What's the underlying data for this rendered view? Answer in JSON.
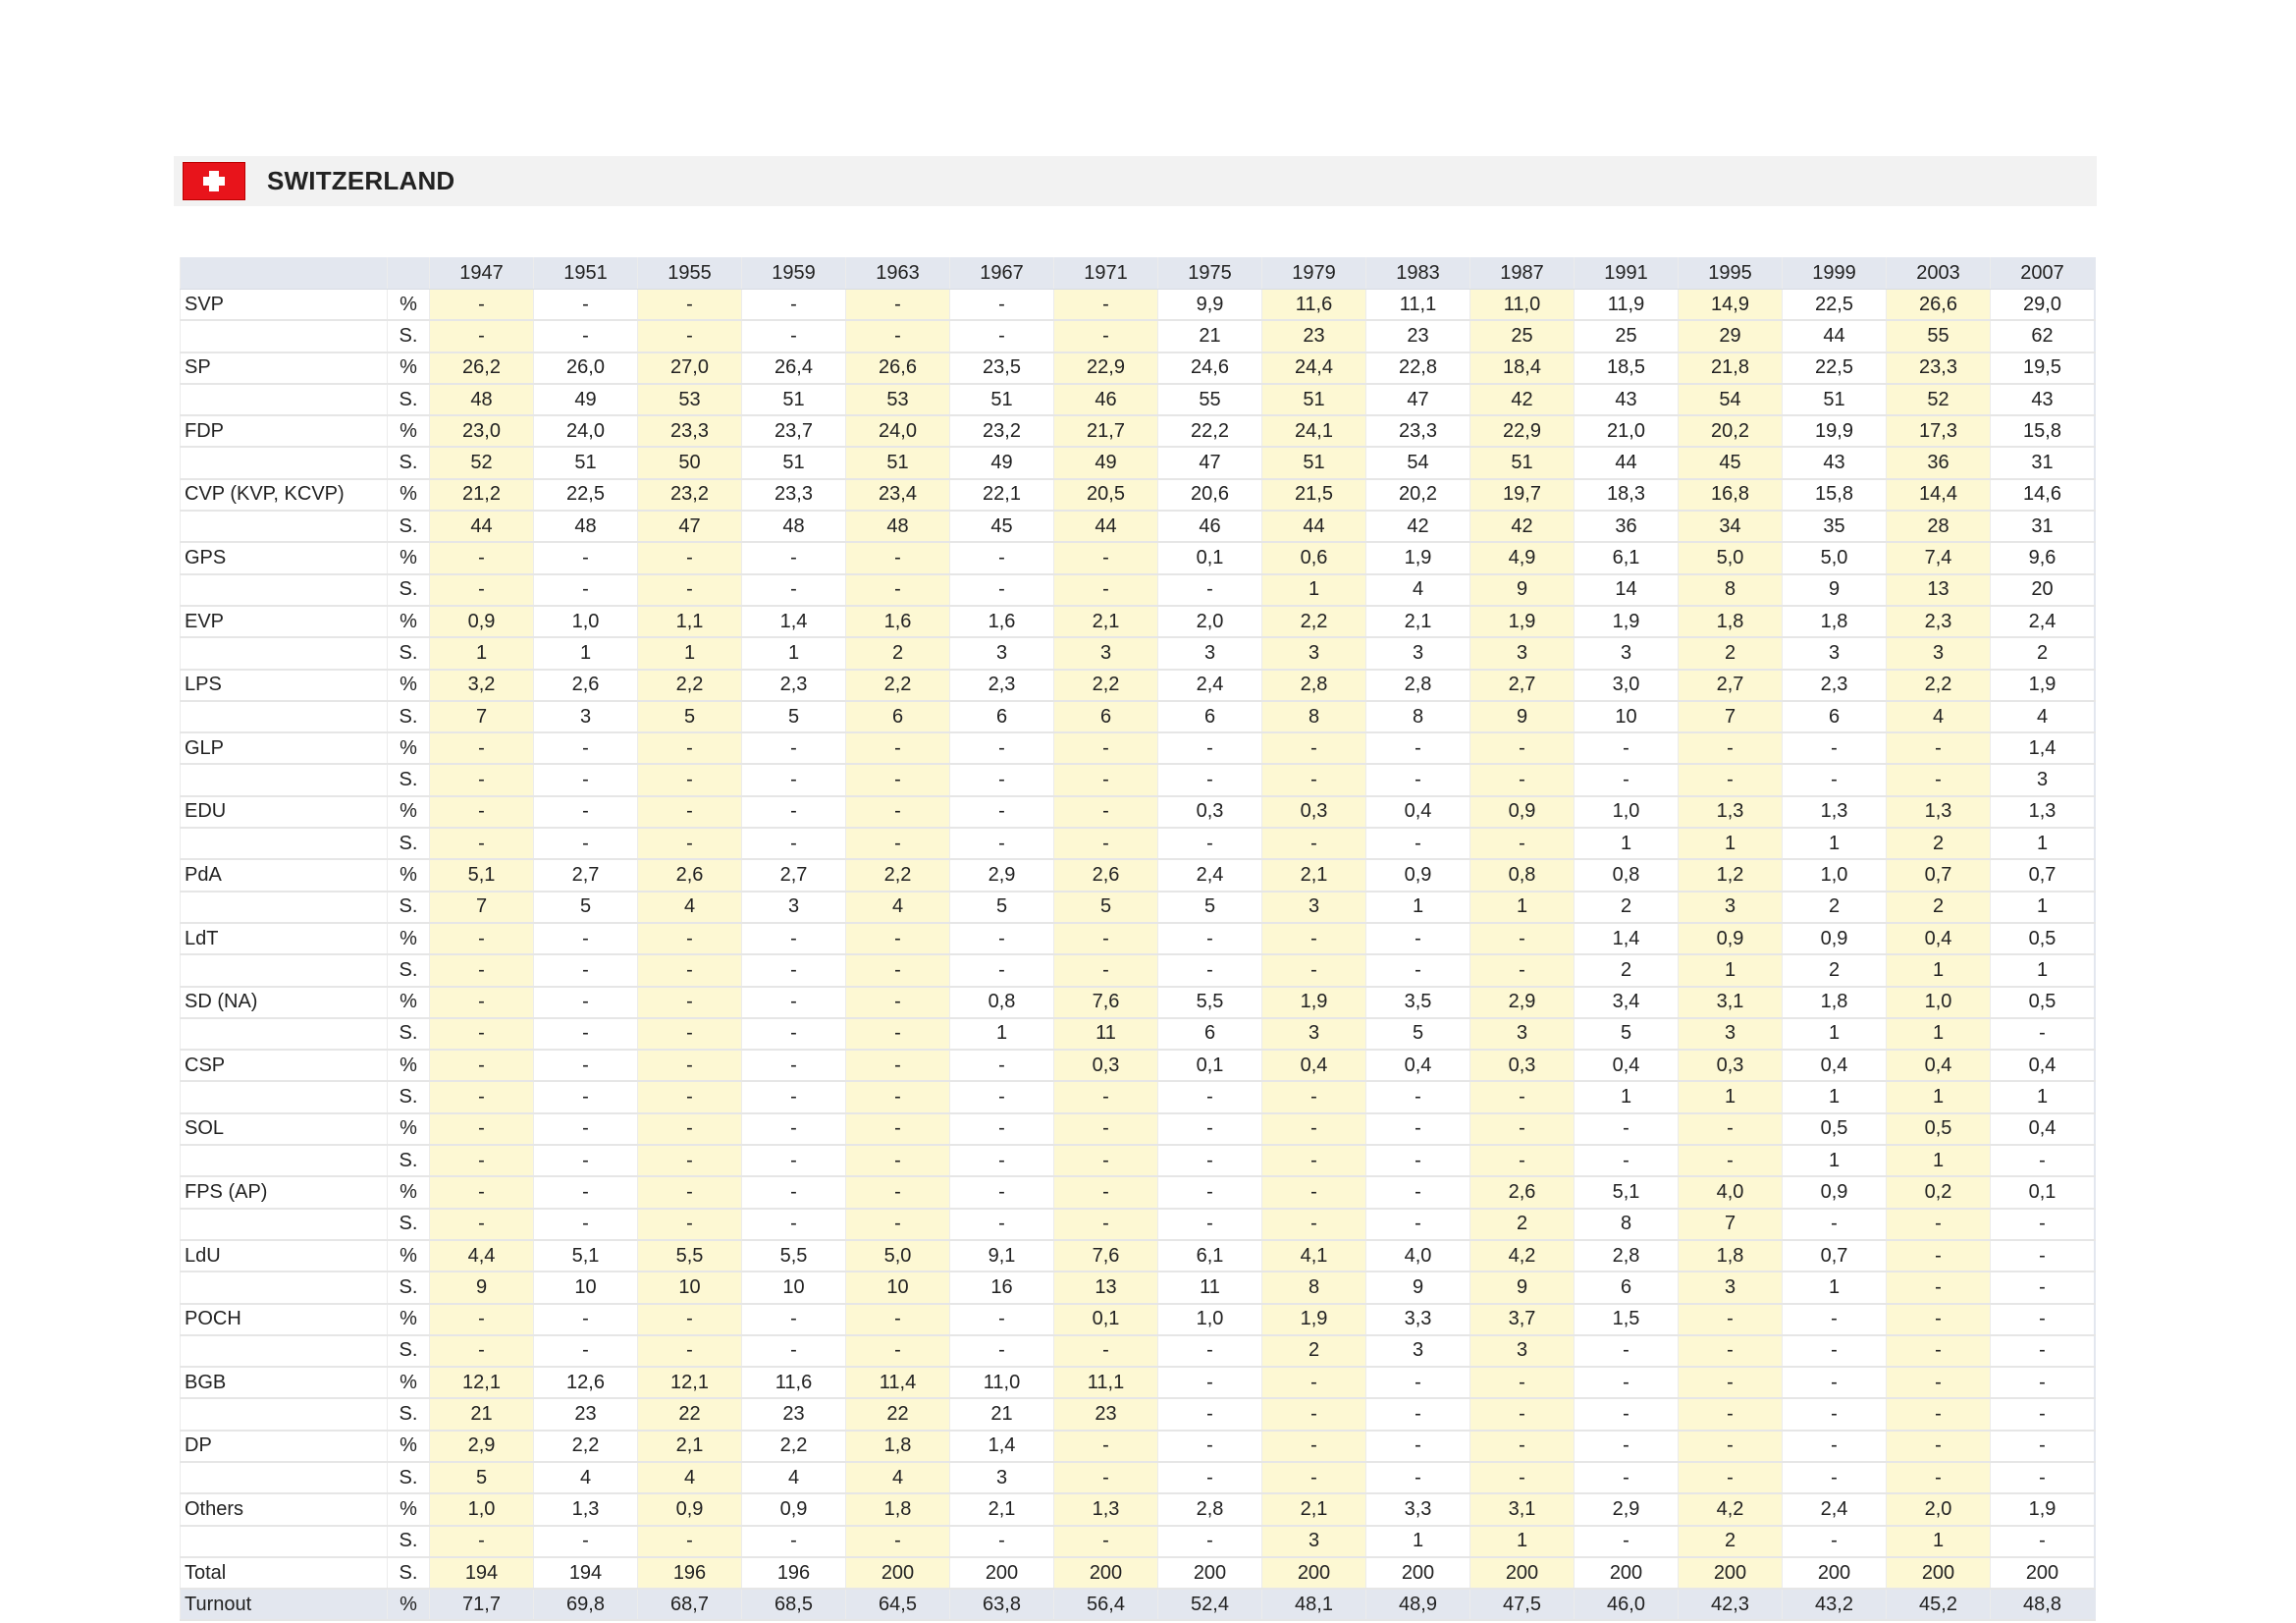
{
  "header": {
    "country": "SWITZERLAND",
    "flag_icon": "swiss-flag-icon"
  },
  "colors": {
    "header_bg": "#e3e7ef",
    "alt_column": "#fdf8d3",
    "flag_red": "#e8141b"
  },
  "table": {
    "years": [
      "1947",
      "1951",
      "1955",
      "1959",
      "1963",
      "1967",
      "1971",
      "1975",
      "1979",
      "1983",
      "1987",
      "1991",
      "1995",
      "1999",
      "2003",
      "2007"
    ],
    "pct_label": "%",
    "seats_label": "S.",
    "parties": [
      {
        "name": "SVP",
        "pct": [
          "-",
          "-",
          "-",
          "-",
          "-",
          "-",
          "-",
          "9,9",
          "11,6",
          "11,1",
          "11,0",
          "11,9",
          "14,9",
          "22,5",
          "26,6",
          "29,0"
        ],
        "seats": [
          "-",
          "-",
          "-",
          "-",
          "-",
          "-",
          "-",
          "21",
          "23",
          "23",
          "25",
          "25",
          "29",
          "44",
          "55",
          "62"
        ]
      },
      {
        "name": "SP",
        "pct": [
          "26,2",
          "26,0",
          "27,0",
          "26,4",
          "26,6",
          "23,5",
          "22,9",
          "24,6",
          "24,4",
          "22,8",
          "18,4",
          "18,5",
          "21,8",
          "22,5",
          "23,3",
          "19,5"
        ],
        "seats": [
          "48",
          "49",
          "53",
          "51",
          "53",
          "51",
          "46",
          "55",
          "51",
          "47",
          "42",
          "43",
          "54",
          "51",
          "52",
          "43"
        ]
      },
      {
        "name": "FDP",
        "pct": [
          "23,0",
          "24,0",
          "23,3",
          "23,7",
          "24,0",
          "23,2",
          "21,7",
          "22,2",
          "24,1",
          "23,3",
          "22,9",
          "21,0",
          "20,2",
          "19,9",
          "17,3",
          "15,8"
        ],
        "seats": [
          "52",
          "51",
          "50",
          "51",
          "51",
          "49",
          "49",
          "47",
          "51",
          "54",
          "51",
          "44",
          "45",
          "43",
          "36",
          "31"
        ]
      },
      {
        "name": "CVP (KVP, KCVP)",
        "pct": [
          "21,2",
          "22,5",
          "23,2",
          "23,3",
          "23,4",
          "22,1",
          "20,5",
          "20,6",
          "21,5",
          "20,2",
          "19,7",
          "18,3",
          "16,8",
          "15,8",
          "14,4",
          "14,6"
        ],
        "seats": [
          "44",
          "48",
          "47",
          "48",
          "48",
          "45",
          "44",
          "46",
          "44",
          "42",
          "42",
          "36",
          "34",
          "35",
          "28",
          "31"
        ]
      },
      {
        "name": "GPS",
        "pct": [
          "-",
          "-",
          "-",
          "-",
          "-",
          "-",
          "-",
          "0,1",
          "0,6",
          "1,9",
          "4,9",
          "6,1",
          "5,0",
          "5,0",
          "7,4",
          "9,6"
        ],
        "seats": [
          "-",
          "-",
          "-",
          "-",
          "-",
          "-",
          "-",
          "-",
          "1",
          "4",
          "9",
          "14",
          "8",
          "9",
          "13",
          "20"
        ]
      },
      {
        "name": "EVP",
        "pct": [
          "0,9",
          "1,0",
          "1,1",
          "1,4",
          "1,6",
          "1,6",
          "2,1",
          "2,0",
          "2,2",
          "2,1",
          "1,9",
          "1,9",
          "1,8",
          "1,8",
          "2,3",
          "2,4"
        ],
        "seats": [
          "1",
          "1",
          "1",
          "1",
          "2",
          "3",
          "3",
          "3",
          "3",
          "3",
          "3",
          "3",
          "2",
          "3",
          "3",
          "2"
        ]
      },
      {
        "name": "LPS",
        "pct": [
          "3,2",
          "2,6",
          "2,2",
          "2,3",
          "2,2",
          "2,3",
          "2,2",
          "2,4",
          "2,8",
          "2,8",
          "2,7",
          "3,0",
          "2,7",
          "2,3",
          "2,2",
          "1,9"
        ],
        "seats": [
          "7",
          "3",
          "5",
          "5",
          "6",
          "6",
          "6",
          "6",
          "8",
          "8",
          "9",
          "10",
          "7",
          "6",
          "4",
          "4"
        ]
      },
      {
        "name": "GLP",
        "pct": [
          "-",
          "-",
          "-",
          "-",
          "-",
          "-",
          "-",
          "-",
          "-",
          "-",
          "-",
          "-",
          "-",
          "-",
          "-",
          "1,4"
        ],
        "seats": [
          "-",
          "-",
          "-",
          "-",
          "-",
          "-",
          "-",
          "-",
          "-",
          "-",
          "-",
          "-",
          "-",
          "-",
          "-",
          "3"
        ]
      },
      {
        "name": "EDU",
        "pct": [
          "-",
          "-",
          "-",
          "-",
          "-",
          "-",
          "-",
          "0,3",
          "0,3",
          "0,4",
          "0,9",
          "1,0",
          "1,3",
          "1,3",
          "1,3",
          "1,3"
        ],
        "seats": [
          "-",
          "-",
          "-",
          "-",
          "-",
          "-",
          "-",
          "-",
          "-",
          "-",
          "-",
          "1",
          "1",
          "1",
          "2",
          "1"
        ]
      },
      {
        "name": "PdA",
        "pct": [
          "5,1",
          "2,7",
          "2,6",
          "2,7",
          "2,2",
          "2,9",
          "2,6",
          "2,4",
          "2,1",
          "0,9",
          "0,8",
          "0,8",
          "1,2",
          "1,0",
          "0,7",
          "0,7"
        ],
        "seats": [
          "7",
          "5",
          "4",
          "3",
          "4",
          "5",
          "5",
          "5",
          "3",
          "1",
          "1",
          "2",
          "3",
          "2",
          "2",
          "1"
        ]
      },
      {
        "name": "LdT",
        "pct": [
          "-",
          "-",
          "-",
          "-",
          "-",
          "-",
          "-",
          "-",
          "-",
          "-",
          "-",
          "1,4",
          "0,9",
          "0,9",
          "0,4",
          "0,5"
        ],
        "seats": [
          "-",
          "-",
          "-",
          "-",
          "-",
          "-",
          "-",
          "-",
          "-",
          "-",
          "-",
          "2",
          "1",
          "2",
          "1",
          "1"
        ]
      },
      {
        "name": "SD (NA)",
        "pct": [
          "-",
          "-",
          "-",
          "-",
          "-",
          "0,8",
          "7,6",
          "5,5",
          "1,9",
          "3,5",
          "2,9",
          "3,4",
          "3,1",
          "1,8",
          "1,0",
          "0,5"
        ],
        "seats": [
          "-",
          "-",
          "-",
          "-",
          "-",
          "1",
          "11",
          "6",
          "3",
          "5",
          "3",
          "5",
          "3",
          "1",
          "1",
          "-"
        ]
      },
      {
        "name": "CSP",
        "pct": [
          "-",
          "-",
          "-",
          "-",
          "-",
          "-",
          "0,3",
          "0,1",
          "0,4",
          "0,4",
          "0,3",
          "0,4",
          "0,3",
          "0,4",
          "0,4",
          "0,4"
        ],
        "seats": [
          "-",
          "-",
          "-",
          "-",
          "-",
          "-",
          "-",
          "-",
          "-",
          "-",
          "-",
          "1",
          "1",
          "1",
          "1",
          "1"
        ]
      },
      {
        "name": "SOL",
        "pct": [
          "-",
          "-",
          "-",
          "-",
          "-",
          "-",
          "-",
          "-",
          "-",
          "-",
          "-",
          "-",
          "-",
          "0,5",
          "0,5",
          "0,4"
        ],
        "seats": [
          "-",
          "-",
          "-",
          "-",
          "-",
          "-",
          "-",
          "-",
          "-",
          "-",
          "-",
          "-",
          "-",
          "1",
          "1",
          "-"
        ]
      },
      {
        "name": "FPS (AP)",
        "pct": [
          "-",
          "-",
          "-",
          "-",
          "-",
          "-",
          "-",
          "-",
          "-",
          "-",
          "2,6",
          "5,1",
          "4,0",
          "0,9",
          "0,2",
          "0,1"
        ],
        "seats": [
          "-",
          "-",
          "-",
          "-",
          "-",
          "-",
          "-",
          "-",
          "-",
          "-",
          "2",
          "8",
          "7",
          "-",
          "-",
          "-"
        ]
      },
      {
        "name": "LdU",
        "pct": [
          "4,4",
          "5,1",
          "5,5",
          "5,5",
          "5,0",
          "9,1",
          "7,6",
          "6,1",
          "4,1",
          "4,0",
          "4,2",
          "2,8",
          "1,8",
          "0,7",
          "-",
          "-"
        ],
        "seats": [
          "9",
          "10",
          "10",
          "10",
          "10",
          "16",
          "13",
          "11",
          "8",
          "9",
          "9",
          "6",
          "3",
          "1",
          "-",
          "-"
        ]
      },
      {
        "name": "POCH",
        "pct": [
          "-",
          "-",
          "-",
          "-",
          "-",
          "-",
          "0,1",
          "1,0",
          "1,9",
          "3,3",
          "3,7",
          "1,5",
          "-",
          "-",
          "-",
          "-"
        ],
        "seats": [
          "-",
          "-",
          "-",
          "-",
          "-",
          "-",
          "-",
          "-",
          "2",
          "3",
          "3",
          "-",
          "-",
          "-",
          "-",
          "-"
        ]
      },
      {
        "name": "BGB",
        "pct": [
          "12,1",
          "12,6",
          "12,1",
          "11,6",
          "11,4",
          "11,0",
          "11,1",
          "-",
          "-",
          "-",
          "-",
          "-",
          "-",
          "-",
          "-",
          "-"
        ],
        "seats": [
          "21",
          "23",
          "22",
          "23",
          "22",
          "21",
          "23",
          "-",
          "-",
          "-",
          "-",
          "-",
          "-",
          "-",
          "-",
          "-"
        ]
      },
      {
        "name": "DP",
        "pct": [
          "2,9",
          "2,2",
          "2,1",
          "2,2",
          "1,8",
          "1,4",
          "-",
          "-",
          "-",
          "-",
          "-",
          "-",
          "-",
          "-",
          "-",
          "-"
        ],
        "seats": [
          "5",
          "4",
          "4",
          "4",
          "4",
          "3",
          "-",
          "-",
          "-",
          "-",
          "-",
          "-",
          "-",
          "-",
          "-",
          "-"
        ]
      },
      {
        "name": "Others",
        "pct": [
          "1,0",
          "1,3",
          "0,9",
          "0,9",
          "1,8",
          "2,1",
          "1,3",
          "2,8",
          "2,1",
          "3,3",
          "3,1",
          "2,9",
          "4,2",
          "2,4",
          "2,0",
          "1,9"
        ],
        "seats": [
          "-",
          "-",
          "-",
          "-",
          "-",
          "-",
          "-",
          "-",
          "3",
          "1",
          "1",
          "-",
          "2",
          "-",
          "1",
          "-"
        ]
      }
    ],
    "total": {
      "name": "Total",
      "unit": "S.",
      "values": [
        "194",
        "194",
        "196",
        "196",
        "200",
        "200",
        "200",
        "200",
        "200",
        "200",
        "200",
        "200",
        "200",
        "200",
        "200",
        "200"
      ]
    },
    "turnout": {
      "name": "Turnout",
      "unit": "%",
      "values": [
        "71,7",
        "69,8",
        "68,7",
        "68,5",
        "64,5",
        "63,8",
        "56,4",
        "52,4",
        "48,1",
        "48,9",
        "47,5",
        "46,0",
        "42,3",
        "43,2",
        "45,2",
        "48,8"
      ]
    }
  }
}
